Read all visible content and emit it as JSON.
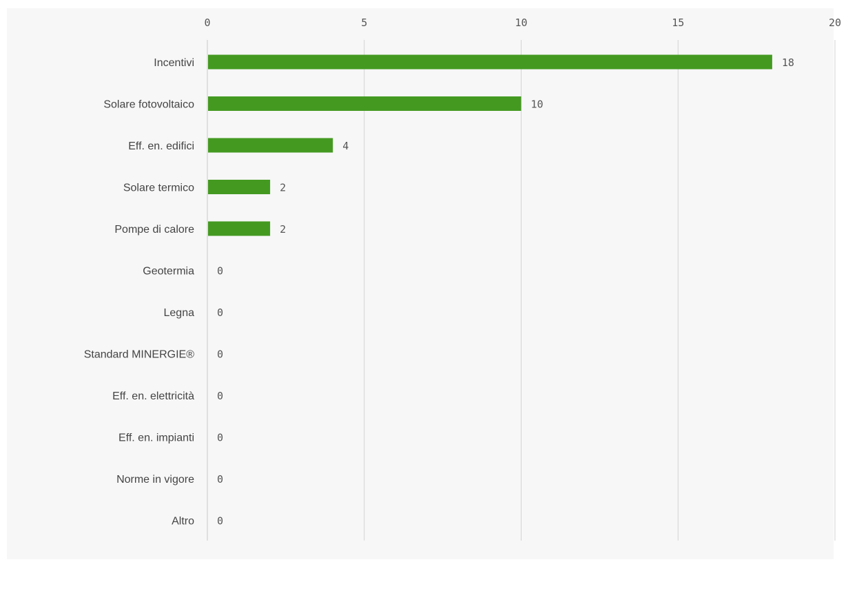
{
  "chart_data": {
    "type": "bar",
    "orientation": "horizontal",
    "title": "",
    "xlabel": "",
    "ylabel": "",
    "categories": [
      "Incentivi",
      "Solare fotovoltaico",
      "Eff. en. edifici",
      "Solare termico",
      "Pompe di calore",
      "Geotermia",
      "Legna",
      "Standard MINERGIE®",
      "Eff. en. elettricità",
      "Eff. en. impianti",
      "Norme in vigore",
      "Altro"
    ],
    "values": [
      18,
      10,
      4,
      2,
      2,
      0,
      0,
      0,
      0,
      0,
      0,
      0
    ],
    "xlim": [
      0,
      20
    ],
    "xticks": [
      0,
      5,
      10,
      15,
      20
    ],
    "x_axis_position": "top",
    "grid": true,
    "legend": "none",
    "data_labels": true,
    "colors": {
      "bar": "#449a21",
      "grid": "#d3d3d3",
      "text": "#444444",
      "plot_background": "#f7f7f7"
    }
  }
}
